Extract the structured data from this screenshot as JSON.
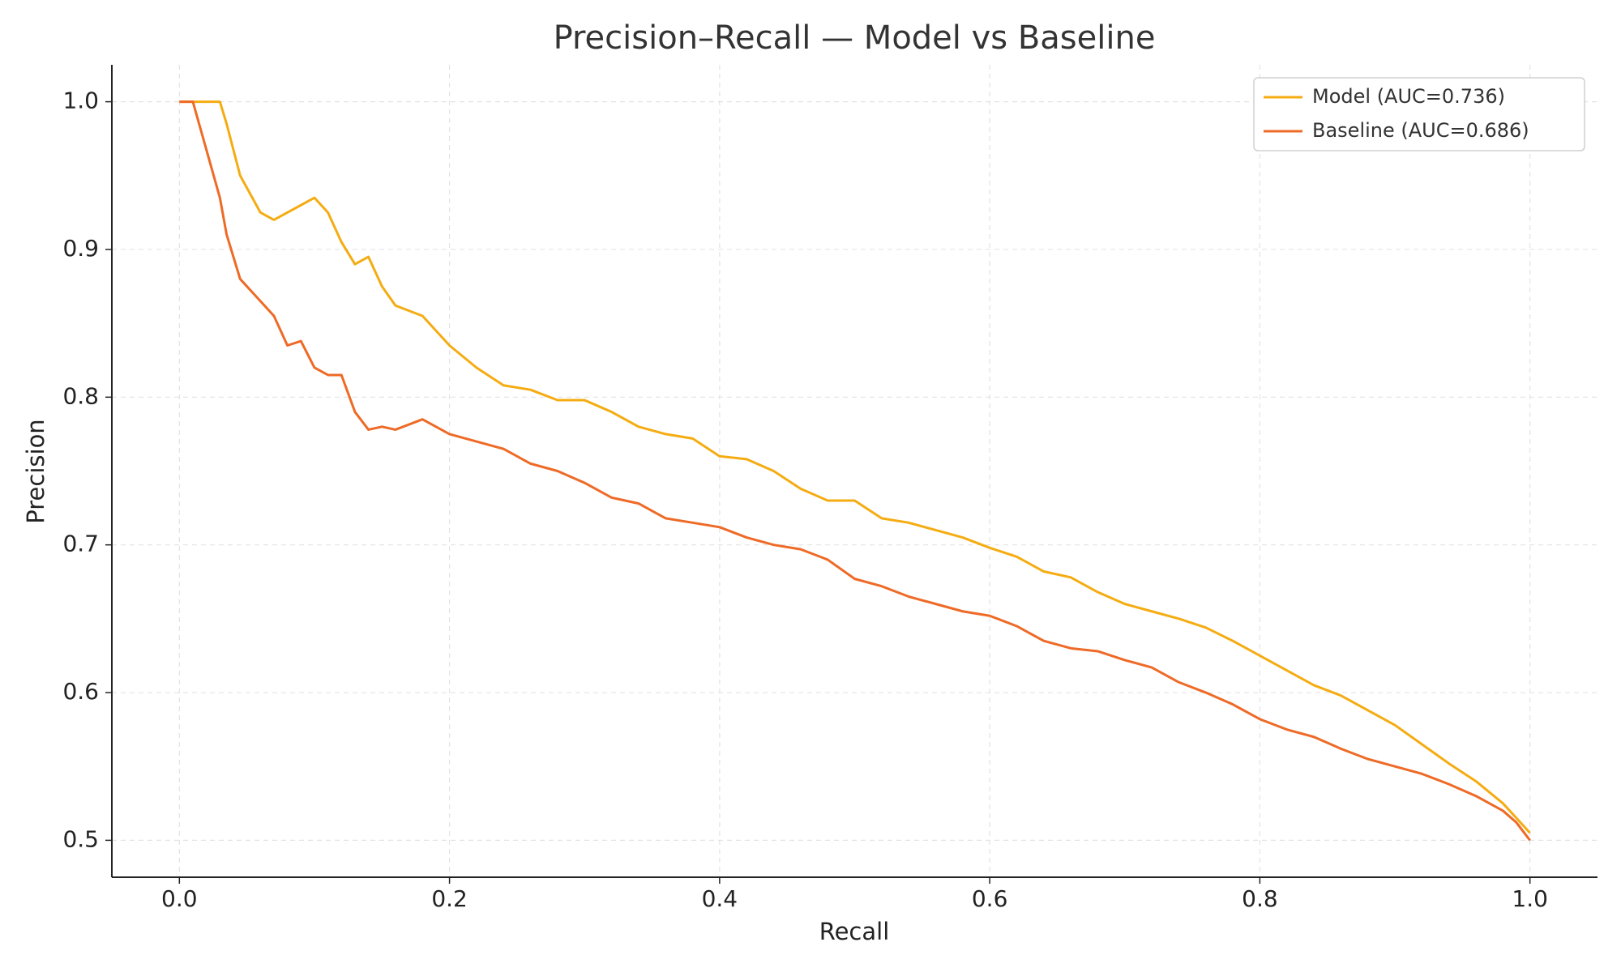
{
  "chart_data": {
    "type": "line",
    "title": "Precision–Recall — Model vs Baseline",
    "x_label": "Recall",
    "y_label": "Precision",
    "x": [
      0,
      0.01,
      0.03,
      0.035,
      0.045,
      0.06,
      0.07,
      0.08,
      0.09,
      0.1,
      0.11,
      0.12,
      0.13,
      0.14,
      0.15,
      0.16,
      0.18,
      0.2,
      0.22,
      0.24,
      0.26,
      0.28,
      0.3,
      0.32,
      0.34,
      0.36,
      0.38,
      0.4,
      0.42,
      0.44,
      0.46,
      0.48,
      0.5,
      0.52,
      0.54,
      0.56,
      0.58,
      0.6,
      0.62,
      0.64,
      0.66,
      0.68,
      0.7,
      0.72,
      0.74,
      0.76,
      0.78,
      0.8,
      0.82,
      0.84,
      0.86,
      0.88,
      0.9,
      0.92,
      0.94,
      0.96,
      0.98,
      0.99,
      1.0
    ],
    "series": [
      {
        "name": "Model (AUC=0.736)",
        "color": "#f5ac12",
        "values": [
          1.0,
          1.0,
          1.0,
          0.985,
          0.95,
          0.925,
          0.92,
          0.925,
          0.93,
          0.935,
          0.925,
          0.905,
          0.89,
          0.895,
          0.875,
          0.862,
          0.855,
          0.835,
          0.82,
          0.808,
          0.805,
          0.798,
          0.798,
          0.79,
          0.78,
          0.775,
          0.772,
          0.76,
          0.758,
          0.75,
          0.738,
          0.73,
          0.73,
          0.718,
          0.715,
          0.71,
          0.705,
          0.698,
          0.692,
          0.682,
          0.678,
          0.668,
          0.66,
          0.655,
          0.65,
          0.644,
          0.635,
          0.625,
          0.615,
          0.605,
          0.598,
          0.588,
          0.578,
          0.565,
          0.552,
          0.54,
          0.525,
          0.515,
          0.505
        ]
      },
      {
        "name": "Baseline (AUC=0.686)",
        "color": "#ee6a26",
        "values": [
          1.0,
          1.0,
          0.935,
          0.91,
          0.88,
          0.865,
          0.855,
          0.835,
          0.838,
          0.82,
          0.815,
          0.815,
          0.79,
          0.778,
          0.78,
          0.778,
          0.785,
          0.775,
          0.77,
          0.765,
          0.755,
          0.75,
          0.742,
          0.732,
          0.728,
          0.718,
          0.715,
          0.712,
          0.705,
          0.7,
          0.697,
          0.69,
          0.677,
          0.672,
          0.665,
          0.66,
          0.655,
          0.652,
          0.645,
          0.635,
          0.63,
          0.628,
          0.622,
          0.617,
          0.607,
          0.6,
          0.592,
          0.582,
          0.575,
          0.57,
          0.562,
          0.555,
          0.55,
          0.545,
          0.538,
          0.53,
          0.52,
          0.512,
          0.5
        ]
      }
    ],
    "xlim": [
      -0.05,
      1.05
    ],
    "xticks": [
      {
        "value": 0,
        "label": "0.0"
      },
      0.2,
      0.4,
      0.6,
      0.8,
      {
        "value": 1,
        "label": "1.0"
      }
    ],
    "ylim": [
      0.475,
      1.025
    ],
    "yticks": [
      0.5,
      0.6,
      0.7,
      0.8,
      0.9,
      {
        "value": 1,
        "label": "1.0"
      }
    ],
    "grid": true,
    "legend": "upper right"
  }
}
